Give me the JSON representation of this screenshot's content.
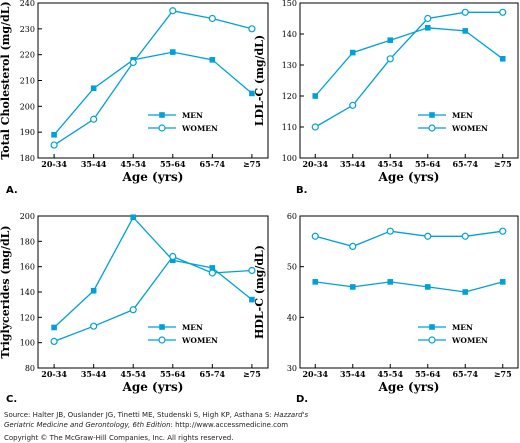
{
  "chart_data": [
    {
      "type": "line",
      "panel_label": "A.",
      "ylabel": "Total Cholesterol (mg/dL)",
      "xlabel": "Age (yrs)",
      "categories": [
        "20-34",
        "35-44",
        "45-54",
        "55-64",
        "65-74",
        "≥75"
      ],
      "ylim": [
        180,
        240
      ],
      "yticks": [
        180,
        190,
        200,
        210,
        220,
        230,
        240
      ],
      "legend_position": "lower-right",
      "series": [
        {
          "name": "MEN",
          "marker": "filled-square",
          "values": [
            189,
            207,
            218,
            221,
            218,
            205
          ]
        },
        {
          "name": "WOMEN",
          "marker": "open-circle",
          "values": [
            185,
            195,
            217,
            237,
            234,
            230
          ]
        }
      ]
    },
    {
      "type": "line",
      "panel_label": "B.",
      "ylabel": "LDL-C (mg/dL)",
      "xlabel": "Age (yrs)",
      "categories": [
        "20-34",
        "35-44",
        "45-54",
        "55-64",
        "65-74",
        "≥75"
      ],
      "ylim": [
        100,
        150
      ],
      "yticks": [
        100,
        110,
        120,
        130,
        140,
        150
      ],
      "legend_position": "lower-right",
      "series": [
        {
          "name": "MEN",
          "marker": "filled-square",
          "values": [
            120,
            134,
            138,
            142,
            141,
            132
          ]
        },
        {
          "name": "WOMEN",
          "marker": "open-circle",
          "values": [
            110,
            117,
            132,
            145,
            147,
            147
          ]
        }
      ]
    },
    {
      "type": "line",
      "panel_label": "C.",
      "ylabel": "Triglycerides (mg/dL)",
      "xlabel": "Age (yrs)",
      "categories": [
        "20-34",
        "35-44",
        "45-54",
        "55-64",
        "65-74",
        "≥75"
      ],
      "ylim": [
        80,
        200
      ],
      "yticks": [
        80,
        100,
        120,
        140,
        160,
        180,
        200
      ],
      "legend_position": "lower-right",
      "series": [
        {
          "name": "MEN",
          "marker": "filled-square",
          "values": [
            112,
            141,
            199,
            165,
            159,
            134
          ]
        },
        {
          "name": "WOMEN",
          "marker": "open-circle",
          "values": [
            101,
            113,
            126,
            168,
            155,
            157
          ]
        }
      ]
    },
    {
      "type": "line",
      "panel_label": "D.",
      "ylabel": "HDL-C (mg/dL)",
      "xlabel": "Age (yrs)",
      "categories": [
        "20-34",
        "35-44",
        "45-54",
        "55-64",
        "65-74",
        "≥75"
      ],
      "ylim": [
        30,
        60
      ],
      "yticks": [
        30,
        40,
        50,
        60
      ],
      "legend_position": "lower-right",
      "series": [
        {
          "name": "MEN",
          "marker": "filled-square",
          "values": [
            47,
            46,
            47,
            46,
            45,
            47
          ]
        },
        {
          "name": "WOMEN",
          "marker": "open-circle",
          "values": [
            56,
            54,
            57,
            56,
            56,
            57
          ]
        }
      ]
    }
  ],
  "footer": {
    "source_prefix": "Source: Halter JB, Ouslander JG, Tinetti ME, Studenski S, High KP, Asthana S: ",
    "source_title_1": "Hazzard's",
    "source_title_2": "Geriatric Medicine and Gerontology, 6th Edition",
    "source_suffix": ": http://www.accessmedicine.com",
    "copyright": "Copyright © The McGraw-Hill Companies, Inc. All rights reserved."
  },
  "colors": {
    "series": "#00a0d8",
    "axis": "#000000",
    "text": "#000000"
  }
}
